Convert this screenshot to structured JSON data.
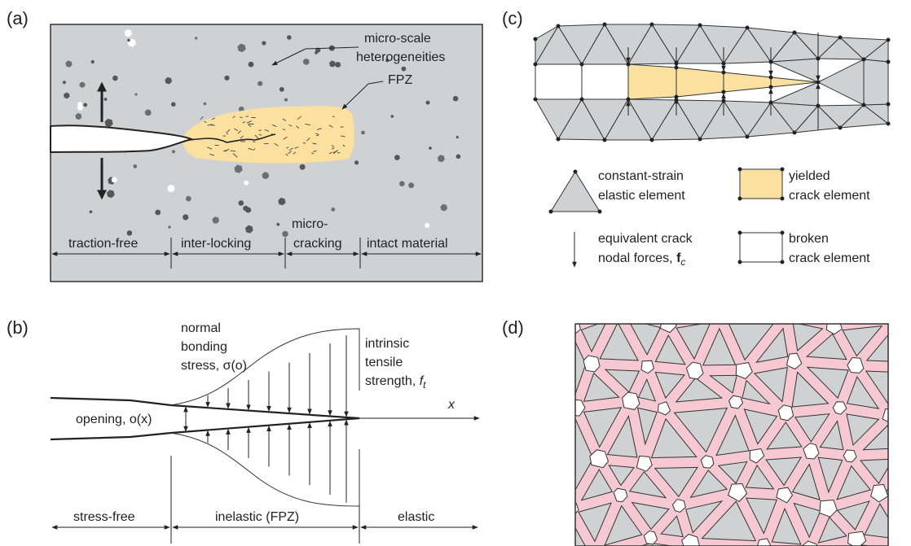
{
  "panels": {
    "a": {
      "label": "(a)",
      "annotations": {
        "heterogeneities_line1": "micro-scale",
        "heterogeneities_line2": "heterogeneities",
        "fpz": "FPZ"
      },
      "zones": {
        "traction_free": "traction-free",
        "inter_locking": "inter-locking",
        "micro_line1": "micro-",
        "micro_line2": "cracking",
        "intact": "intact material"
      },
      "colors": {
        "matrix": "#cfd1d3",
        "fpz": "#fbe0a0",
        "particle": "#6d6e71"
      }
    },
    "b": {
      "label": "(b)",
      "stress_line1": "normal",
      "stress_line2": "bonding",
      "stress_line3": "stress, σ(o)",
      "strength_line1": "intrinsic",
      "strength_line2": "tensile",
      "strength_line3_prefix": "strength, ",
      "strength_symbol": "f",
      "strength_sub": "t",
      "x_axis": "x",
      "opening": "opening, o(x)",
      "zones": {
        "stress_free": "stress-free",
        "inelastic": "inelastic (FPZ)",
        "elastic": "elastic"
      }
    },
    "c": {
      "label": "(c)",
      "legend": {
        "constant_strain_line1": "constant-strain",
        "constant_strain_line2": "elastic element",
        "yielded_line1": "yielded",
        "yielded_line2": "crack element",
        "forces_line1": "equivalent crack",
        "forces_line2_prefix": "nodal forces, ",
        "forces_symbol": "f",
        "forces_sub": "c",
        "broken_line1": "broken",
        "broken_line2": "crack element"
      },
      "colors": {
        "element": "#cfd1d3",
        "yielded": "#fbe0a0"
      }
    },
    "d": {
      "label": "(d)",
      "colors": {
        "element": "#cfd1d3",
        "bond": "#f6c8d2"
      }
    }
  }
}
